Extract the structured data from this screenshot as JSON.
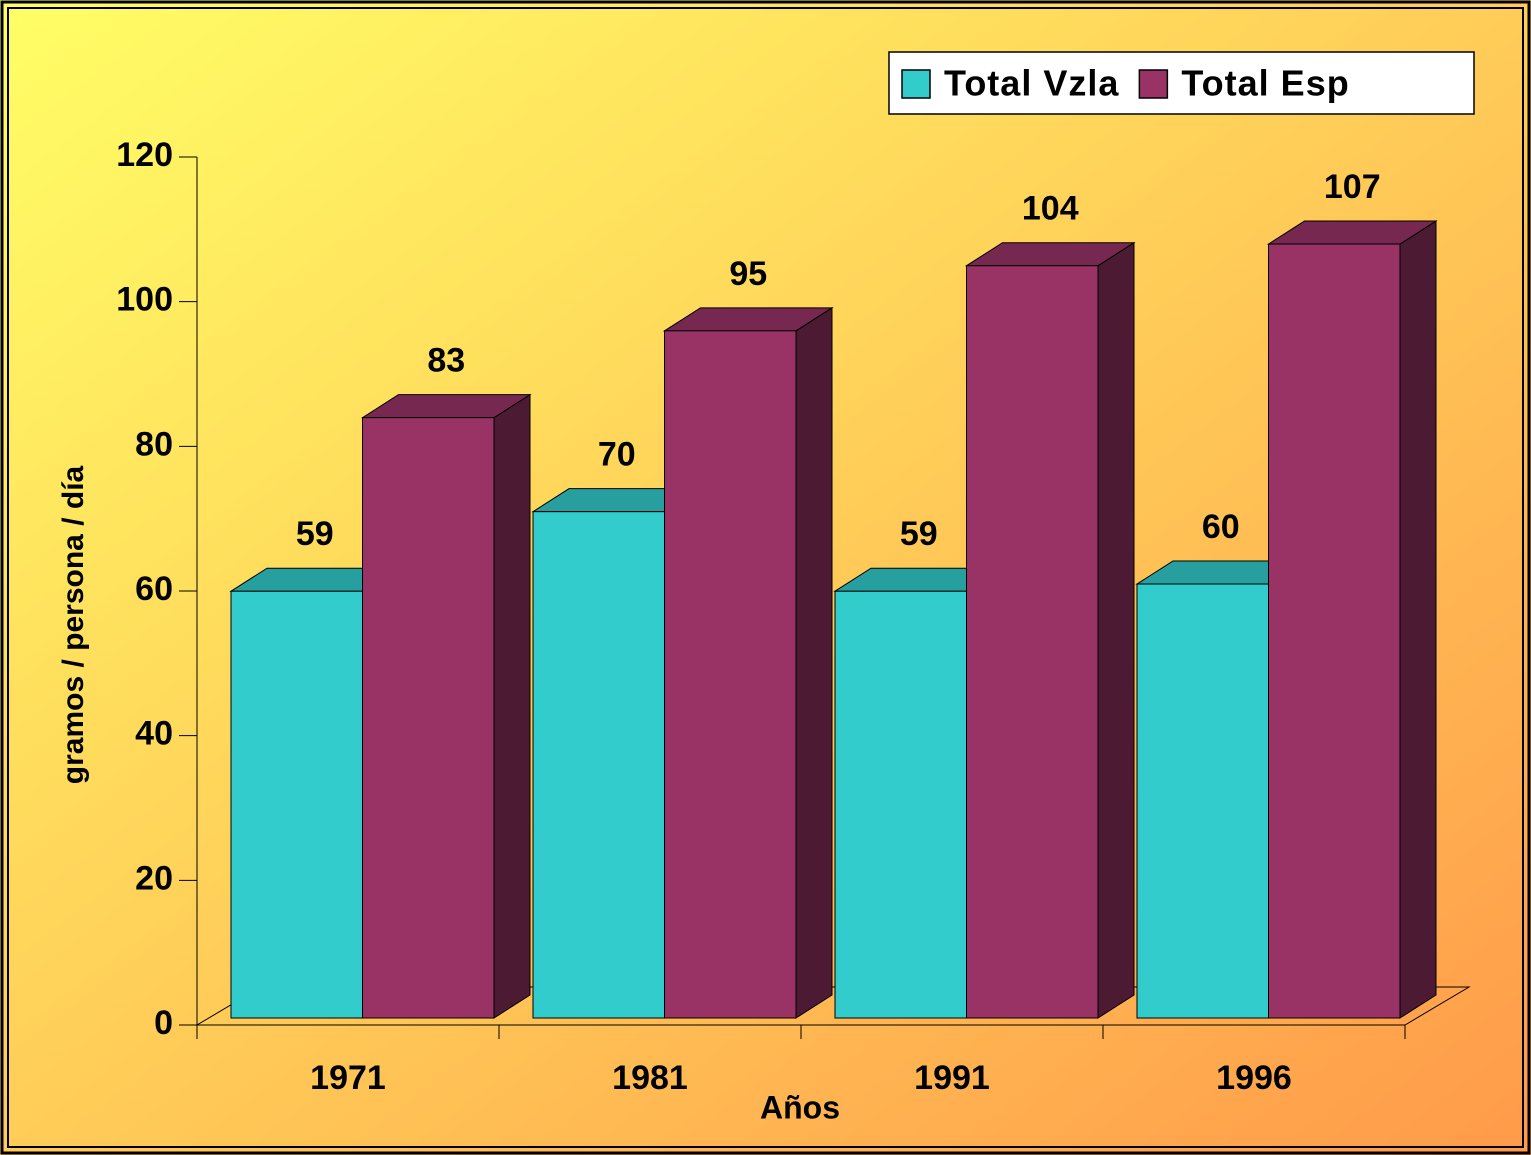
{
  "chart_data": {
    "type": "bar3d",
    "y_label": "gramos / persona / día",
    "x_label": "Años",
    "categories": [
      "1971",
      "1981",
      "1991",
      "1996"
    ],
    "series": [
      {
        "name": "Total Vzla",
        "color": "#33cccc",
        "values": [
          59,
          70,
          59,
          60
        ]
      },
      {
        "name": "Total Esp",
        "color": "#993366",
        "values": [
          83,
          95,
          104,
          107
        ]
      }
    ],
    "ylim": [
      0,
      120
    ],
    "yticks": [
      0,
      20,
      40,
      60,
      80,
      100,
      120
    ],
    "legend": "top-right",
    "grid": false
  }
}
